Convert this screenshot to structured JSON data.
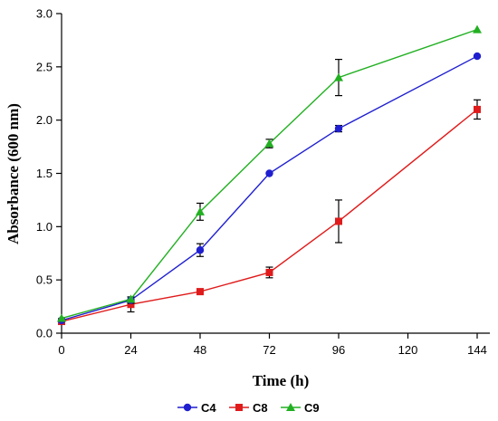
{
  "colors": {
    "C4": "#1f1fd0",
    "C8": "#e01b1b",
    "C9": "#22b022"
  },
  "chart_data": {
    "type": "line",
    "title": "",
    "xlabel": "Time (h)",
    "ylabel": "Absorbance (600 nm)",
    "xlim": [
      0,
      150
    ],
    "ylim": [
      0,
      3.0
    ],
    "xticks": [
      0,
      24,
      48,
      72,
      96,
      120,
      144
    ],
    "yticks": [
      0.0,
      0.5,
      1.0,
      1.5,
      2.0,
      2.5,
      3.0
    ],
    "ytick_labels": [
      "0.0",
      "0.5",
      "1.0",
      "1.5",
      "2.0",
      "2.5",
      "3.0"
    ],
    "grid": false,
    "legend_position": "bottom-center",
    "series": [
      {
        "name": "C4",
        "marker": "circle",
        "x": [
          0,
          24,
          48,
          72,
          96,
          144
        ],
        "y": [
          0.12,
          0.31,
          0.78,
          1.5,
          1.92,
          2.6
        ],
        "err": [
          0.0,
          0.03,
          0.06,
          0.0,
          0.03,
          0.0
        ]
      },
      {
        "name": "C8",
        "marker": "square",
        "x": [
          0,
          24,
          48,
          72,
          96,
          144
        ],
        "y": [
          0.11,
          0.27,
          0.39,
          0.57,
          1.05,
          2.1
        ],
        "err": [
          0.0,
          0.07,
          0.0,
          0.05,
          0.2,
          0.09
        ]
      },
      {
        "name": "C9",
        "marker": "triangle",
        "x": [
          0,
          24,
          48,
          72,
          96,
          144
        ],
        "y": [
          0.14,
          0.32,
          1.14,
          1.78,
          2.4,
          2.85
        ],
        "err": [
          0.0,
          0.0,
          0.08,
          0.04,
          0.17,
          0.0
        ]
      }
    ]
  }
}
